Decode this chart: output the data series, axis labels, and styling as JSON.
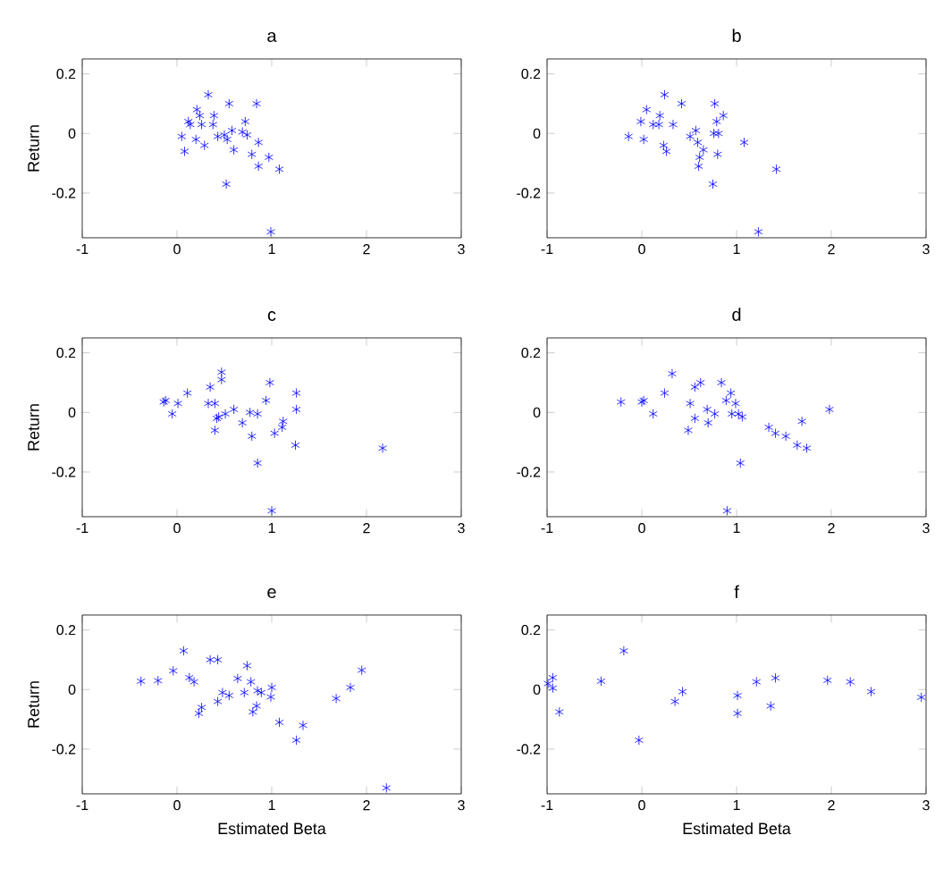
{
  "chart_data": [
    {
      "type": "scatter",
      "title": "a",
      "ylabel": "Return",
      "color": "#0000ff",
      "marker": "cross",
      "xlim": [
        -1,
        3
      ],
      "ylim": [
        -0.35,
        0.25
      ],
      "xticks": [
        -1,
        0,
        1,
        2,
        3
      ],
      "yticks": [
        -0.2,
        0,
        0.2
      ],
      "x": [
        0.33,
        0.55,
        0.84,
        0.21,
        0.39,
        0.24,
        0.12,
        0.72,
        0.14,
        0.26,
        0.38,
        0.05,
        0.43,
        0.5,
        0.53,
        0.58,
        0.69,
        0.74,
        0.2,
        0.29,
        0.08,
        0.6,
        0.86,
        0.79,
        0.97,
        0.86,
        1.08,
        0.52,
        0.99
      ],
      "values": [
        0.13,
        0.1,
        0.1,
        0.08,
        0.06,
        0.06,
        0.04,
        0.04,
        0.03,
        0.03,
        0.03,
        -0.01,
        -0.01,
        -0.005,
        -0.02,
        0.01,
        0.005,
        -0.005,
        -0.02,
        -0.04,
        -0.06,
        -0.055,
        -0.03,
        -0.07,
        -0.08,
        -0.11,
        -0.12,
        -0.17,
        -0.33
      ]
    },
    {
      "type": "scatter",
      "title": "b",
      "color": "#0000ff",
      "marker": "cross",
      "xlim": [
        -1,
        3
      ],
      "ylim": [
        -0.35,
        0.25
      ],
      "xticks": [
        -1,
        0,
        1,
        2,
        3
      ],
      "yticks": [
        -0.2,
        0,
        0.2
      ],
      "x": [
        0.24,
        0.42,
        0.77,
        0.05,
        0.86,
        0.19,
        -0.01,
        0.79,
        0.12,
        0.18,
        0.33,
        -0.14,
        0.02,
        0.57,
        0.51,
        0.59,
        0.76,
        0.81,
        0.23,
        0.26,
        0.65,
        0.61,
        0.6,
        0.8,
        1.08,
        1.42,
        0.75,
        1.23
      ],
      "values": [
        0.13,
        0.1,
        0.1,
        0.08,
        0.06,
        0.06,
        0.04,
        0.04,
        0.03,
        0.03,
        0.03,
        -0.01,
        -0.02,
        0.01,
        -0.01,
        -0.03,
        0,
        0,
        -0.04,
        -0.06,
        -0.055,
        -0.08,
        -0.11,
        -0.07,
        -0.03,
        -0.12,
        -0.17,
        -0.33
      ]
    },
    {
      "type": "scatter",
      "title": "c",
      "ylabel": "Return",
      "color": "#0000ff",
      "marker": "cross",
      "xlim": [
        -1,
        3
      ],
      "ylim": [
        -0.35,
        0.25
      ],
      "xticks": [
        -1,
        0,
        1,
        2,
        3
      ],
      "yticks": [
        -0.2,
        0,
        0.2
      ],
      "x": [
        0.47,
        0.47,
        0.98,
        0.35,
        -0.12,
        -0.14,
        0.01,
        0.11,
        0.33,
        0.4,
        0.94,
        1.26,
        1.26,
        0.6,
        0.51,
        0.77,
        0.85,
        -0.05,
        0.44,
        0.42,
        0.69,
        1.12,
        1.11,
        1.03,
        0.4,
        0.79,
        1.25,
        2.17,
        0.85,
        1.0
      ],
      "values": [
        0.135,
        0.11,
        0.1,
        0.085,
        0.04,
        0.035,
        0.03,
        0.065,
        0.03,
        0.03,
        0.04,
        0.065,
        0.01,
        0.01,
        -0.005,
        0,
        -0.005,
        -0.005,
        -0.015,
        -0.02,
        -0.035,
        -0.03,
        -0.05,
        -0.07,
        -0.06,
        -0.08,
        -0.11,
        -0.12,
        -0.17,
        -0.33
      ]
    },
    {
      "type": "scatter",
      "title": "d",
      "color": "#0000ff",
      "marker": "cross",
      "xlim": [
        -1,
        3
      ],
      "ylim": [
        -0.35,
        0.25
      ],
      "xticks": [
        -1,
        0,
        1,
        2,
        3
      ],
      "yticks": [
        -0.2,
        0,
        0.2
      ],
      "x": [
        0.32,
        0.62,
        0.84,
        0.56,
        0.24,
        -0.22,
        0,
        0.02,
        0.51,
        0.89,
        0.94,
        0.99,
        1.98,
        0.69,
        0.12,
        0.56,
        0.77,
        0.95,
        1.02,
        1.06,
        0.7,
        0.49,
        1.34,
        1.41,
        1.52,
        1.69,
        1.64,
        1.74,
        1.04,
        0.9
      ],
      "values": [
        0.13,
        0.1,
        0.1,
        0.085,
        0.065,
        0.035,
        0.035,
        0.04,
        0.03,
        0.04,
        0.065,
        0.03,
        0.01,
        0.01,
        -0.005,
        -0.02,
        -0.005,
        -0.005,
        -0.005,
        -0.015,
        -0.035,
        -0.06,
        -0.05,
        -0.07,
        -0.08,
        -0.03,
        -0.11,
        -0.12,
        -0.17,
        -0.33
      ]
    },
    {
      "type": "scatter",
      "title": "e",
      "xlabel": "Estimated Beta",
      "ylabel": "Return",
      "color": "#0000ff",
      "marker": "cross",
      "xlim": [
        -1,
        3
      ],
      "ylim": [
        -0.35,
        0.25
      ],
      "xticks": [
        -1,
        0,
        1,
        2,
        3
      ],
      "yticks": [
        -0.2,
        0,
        0.2
      ],
      "x": [
        0.07,
        0.35,
        0.43,
        0.74,
        1.95,
        -0.04,
        -0.38,
        -0.2,
        0.13,
        0.18,
        0.64,
        0.78,
        1.0,
        1.83,
        0.48,
        0.71,
        0.85,
        0.89,
        0.55,
        0.99,
        1.68,
        0.43,
        0.26,
        0.23,
        0.84,
        0.8,
        1.08,
        1.33,
        1.26,
        2.21
      ],
      "values": [
        0.13,
        0.1,
        0.1,
        0.08,
        0.065,
        0.063,
        0.028,
        0.03,
        0.04,
        0.026,
        0.037,
        0.026,
        0.007,
        0.007,
        -0.01,
        -0.01,
        -0.004,
        -0.01,
        -0.02,
        -0.025,
        -0.03,
        -0.04,
        -0.06,
        -0.08,
        -0.055,
        -0.075,
        -0.11,
        -0.12,
        -0.17,
        -0.33
      ]
    },
    {
      "type": "scatter",
      "title": "f",
      "xlabel": "Estimated Beta",
      "color": "#0000ff",
      "marker": "cross",
      "xlim": [
        -1,
        3
      ],
      "ylim": [
        -0.35,
        0.25
      ],
      "xticks": [
        -1,
        0,
        1,
        2,
        3
      ],
      "yticks": [
        -0.2,
        0,
        0.2
      ],
      "x": [
        -0.94,
        -0.94,
        -0.99,
        -0.87,
        -0.43,
        -0.19,
        -0.03,
        0.35,
        0.43,
        1.01,
        1.01,
        1.21,
        1.36,
        1.41,
        1.96,
        2.2,
        2.42,
        2.95
      ],
      "values": [
        0.04,
        0.005,
        0.02,
        -0.075,
        0.028,
        0.13,
        -0.17,
        -0.04,
        -0.007,
        -0.02,
        -0.08,
        0.026,
        -0.055,
        0.039,
        0.031,
        0.026,
        -0.007,
        -0.026
      ]
    }
  ]
}
